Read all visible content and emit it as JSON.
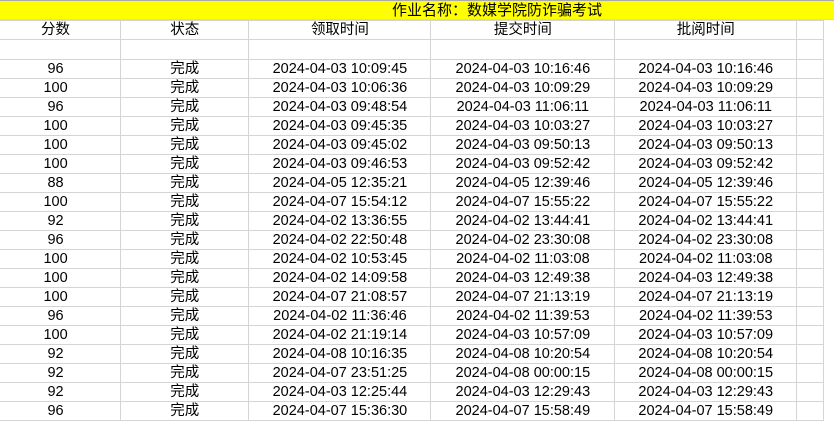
{
  "title": "作业名称：数媒学院防诈骗考试",
  "headers": [
    "分数",
    "状态",
    "领取时间",
    "提交时间",
    "批阅时间"
  ],
  "rows": [
    [
      "96",
      "完成",
      "2024-04-03 10:09:45",
      "2024-04-03 10:16:46",
      "2024-04-03 10:16:46"
    ],
    [
      "100",
      "完成",
      "2024-04-03 10:06:36",
      "2024-04-03 10:09:29",
      "2024-04-03 10:09:29"
    ],
    [
      "96",
      "完成",
      "2024-04-03 09:48:54",
      "2024-04-03 11:06:11",
      "2024-04-03 11:06:11"
    ],
    [
      "100",
      "完成",
      "2024-04-03 09:45:35",
      "2024-04-03 10:03:27",
      "2024-04-03 10:03:27"
    ],
    [
      "100",
      "完成",
      "2024-04-03 09:45:02",
      "2024-04-03 09:50:13",
      "2024-04-03 09:50:13"
    ],
    [
      "100",
      "完成",
      "2024-04-03 09:46:53",
      "2024-04-03 09:52:42",
      "2024-04-03 09:52:42"
    ],
    [
      "88",
      "完成",
      "2024-04-05 12:35:21",
      "2024-04-05 12:39:46",
      "2024-04-05 12:39:46"
    ],
    [
      "100",
      "完成",
      "2024-04-07 15:54:12",
      "2024-04-07 15:55:22",
      "2024-04-07 15:55:22"
    ],
    [
      "92",
      "完成",
      "2024-04-02 13:36:55",
      "2024-04-02 13:44:41",
      "2024-04-02 13:44:41"
    ],
    [
      "96",
      "完成",
      "2024-04-02 22:50:48",
      "2024-04-02 23:30:08",
      "2024-04-02 23:30:08"
    ],
    [
      "100",
      "完成",
      "2024-04-02 10:53:45",
      "2024-04-02 11:03:08",
      "2024-04-02 11:03:08"
    ],
    [
      "100",
      "完成",
      "2024-04-02 14:09:58",
      "2024-04-03 12:49:38",
      "2024-04-03 12:49:38"
    ],
    [
      "100",
      "完成",
      "2024-04-07 21:08:57",
      "2024-04-07 21:13:19",
      "2024-04-07 21:13:19"
    ],
    [
      "96",
      "完成",
      "2024-04-02 11:36:46",
      "2024-04-02 11:39:53",
      "2024-04-02 11:39:53"
    ],
    [
      "100",
      "完成",
      "2024-04-02 21:19:14",
      "2024-04-03 10:57:09",
      "2024-04-03 10:57:09"
    ],
    [
      "92",
      "完成",
      "2024-04-08 10:16:35",
      "2024-04-08 10:20:54",
      "2024-04-08 10:20:54"
    ],
    [
      "92",
      "完成",
      "2024-04-07 23:51:25",
      "2024-04-08 00:00:15",
      "2024-04-08 00:00:15"
    ],
    [
      "92",
      "完成",
      "2024-04-03 12:25:44",
      "2024-04-03 12:29:43",
      "2024-04-03 12:29:43"
    ],
    [
      "96",
      "完成",
      "2024-04-07 15:36:30",
      "2024-04-07 15:58:49",
      "2024-04-07 15:58:49"
    ]
  ],
  "colors": {
    "title_bg": "#ffff00",
    "grid": "#d4d4d4"
  }
}
